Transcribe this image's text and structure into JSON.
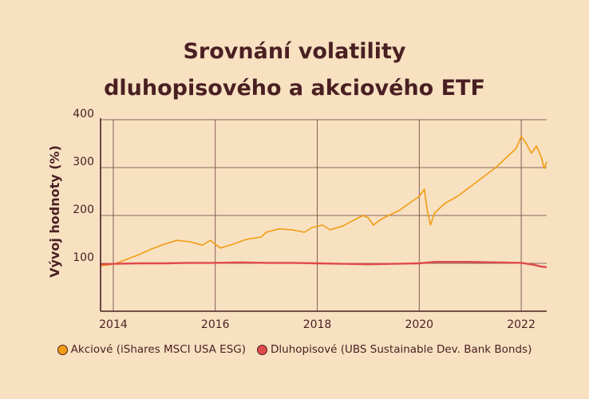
{
  "chart_data": {
    "type": "line",
    "title_lines": [
      "Srovnání volatility",
      "dluhopisového a akciového ETF"
    ],
    "ylabel": "Vývoj hodnoty (%)",
    "xlabel": "",
    "xlim": [
      2013.75,
      2022.5
    ],
    "ylim": [
      0,
      400
    ],
    "x_ticks": [
      2014,
      2016,
      2018,
      2020,
      2022
    ],
    "y_ticks": [
      100,
      200,
      300,
      400
    ],
    "grid": true,
    "legend_position": "bottom",
    "series": [
      {
        "name": "Akciové (iShares MSCI USA ESG)",
        "color": "#f39c12",
        "points": [
          [
            2013.75,
            95
          ],
          [
            2014.0,
            98
          ],
          [
            2014.25,
            108
          ],
          [
            2014.5,
            118
          ],
          [
            2014.75,
            130
          ],
          [
            2015.0,
            140
          ],
          [
            2015.25,
            148
          ],
          [
            2015.5,
            145
          ],
          [
            2015.75,
            138
          ],
          [
            2015.9,
            148
          ],
          [
            2016.1,
            132
          ],
          [
            2016.35,
            140
          ],
          [
            2016.6,
            150
          ],
          [
            2016.9,
            155
          ],
          [
            2017.0,
            165
          ],
          [
            2017.25,
            172
          ],
          [
            2017.5,
            170
          ],
          [
            2017.75,
            165
          ],
          [
            2017.9,
            175
          ],
          [
            2018.1,
            180
          ],
          [
            2018.25,
            170
          ],
          [
            2018.5,
            178
          ],
          [
            2018.75,
            192
          ],
          [
            2018.9,
            200
          ],
          [
            2019.0,
            195
          ],
          [
            2019.1,
            180
          ],
          [
            2019.25,
            192
          ],
          [
            2019.4,
            200
          ],
          [
            2019.6,
            210
          ],
          [
            2019.8,
            225
          ],
          [
            2020.0,
            240
          ],
          [
            2020.1,
            255
          ],
          [
            2020.15,
            215
          ],
          [
            2020.22,
            180
          ],
          [
            2020.3,
            205
          ],
          [
            2020.5,
            225
          ],
          [
            2020.75,
            240
          ],
          [
            2021.0,
            260
          ],
          [
            2021.25,
            280
          ],
          [
            2021.5,
            300
          ],
          [
            2021.75,
            325
          ],
          [
            2021.9,
            340
          ],
          [
            2022.0,
            365
          ],
          [
            2022.1,
            350
          ],
          [
            2022.2,
            330
          ],
          [
            2022.3,
            345
          ],
          [
            2022.4,
            320
          ],
          [
            2022.45,
            298
          ],
          [
            2022.5,
            312
          ]
        ]
      },
      {
        "name": "Dluhopisové (UBS Sustainable Dev. Bank Bonds)",
        "color": "#e04a4a",
        "points": [
          [
            2013.75,
            98
          ],
          [
            2014.0,
            99
          ],
          [
            2014.5,
            100
          ],
          [
            2015.0,
            100
          ],
          [
            2015.5,
            101
          ],
          [
            2016.0,
            101
          ],
          [
            2016.5,
            102
          ],
          [
            2017.0,
            101
          ],
          [
            2017.5,
            101
          ],
          [
            2018.0,
            100
          ],
          [
            2018.5,
            99
          ],
          [
            2019.0,
            98
          ],
          [
            2019.5,
            99
          ],
          [
            2020.0,
            100
          ],
          [
            2020.3,
            103
          ],
          [
            2020.6,
            103
          ],
          [
            2021.0,
            103
          ],
          [
            2021.5,
            102
          ],
          [
            2022.0,
            101
          ],
          [
            2022.25,
            97
          ],
          [
            2022.4,
            93
          ],
          [
            2022.5,
            92
          ]
        ]
      }
    ]
  }
}
